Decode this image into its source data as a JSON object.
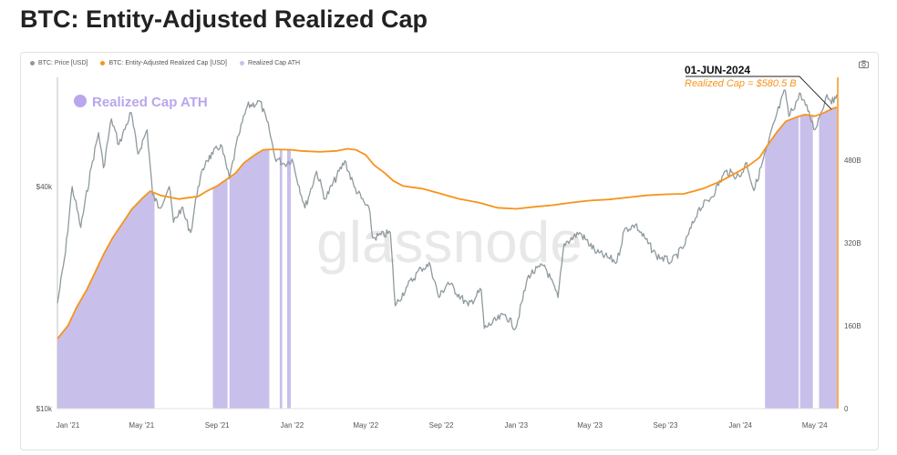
{
  "title": "BTC: Entity-Adjusted Realized Cap",
  "legend": [
    {
      "label": "BTC: Price [USD]",
      "color": "#8e9a9e"
    },
    {
      "label": "BTC: Entity-Adjusted Realized Cap [USD]",
      "color": "#f7931a"
    },
    {
      "label": "Realized Cap ATH",
      "color": "#c9bfeb"
    }
  ],
  "camera_icon": "camera-icon",
  "watermark": "glassnode",
  "chart_data": {
    "type": "line",
    "x_ticks": [
      "Jan '21",
      "May '21",
      "Sep '21",
      "Jan '22",
      "May '22",
      "Sep '22",
      "Jan '23",
      "May '23",
      "Sep '23",
      "Jan '24",
      "May '24"
    ],
    "y_left_scale": "log",
    "y_left_ticks": [
      "$10k",
      "$40k"
    ],
    "y_right_ticks": [
      "0",
      "160B",
      "320B",
      "480B"
    ],
    "y_right_range": [
      0,
      640
    ],
    "annotation": {
      "date": "01-JUN-2024",
      "text": "Realized Cap = $580.5 B",
      "value": 580.5
    },
    "series": [
      {
        "name": "BTC: Price [USD]",
        "color": "#8e9a9e",
        "axis": "left",
        "points": [
          [
            "2020-12-15",
            19300
          ],
          [
            "2020-12-28",
            26500
          ],
          [
            "2021-01-08",
            40000
          ],
          [
            "2021-01-22",
            31000
          ],
          [
            "2021-02-08",
            45000
          ],
          [
            "2021-02-20",
            56000
          ],
          [
            "2021-02-28",
            45000
          ],
          [
            "2021-03-13",
            61000
          ],
          [
            "2021-03-25",
            52000
          ],
          [
            "2021-04-14",
            63500
          ],
          [
            "2021-04-25",
            49000
          ],
          [
            "2021-05-10",
            57000
          ],
          [
            "2021-05-19",
            38000
          ],
          [
            "2021-05-30",
            35000
          ],
          [
            "2021-06-15",
            40000
          ],
          [
            "2021-06-22",
            32000
          ],
          [
            "2021-07-05",
            35000
          ],
          [
            "2021-07-20",
            30000
          ],
          [
            "2021-08-01",
            40000
          ],
          [
            "2021-08-14",
            47000
          ],
          [
            "2021-08-25",
            49000
          ],
          [
            "2021-09-07",
            52000
          ],
          [
            "2021-09-21",
            42000
          ],
          [
            "2021-10-06",
            55000
          ],
          [
            "2021-10-20",
            66000
          ],
          [
            "2021-11-10",
            68000
          ],
          [
            "2021-11-25",
            57000
          ],
          [
            "2021-12-04",
            48000
          ],
          [
            "2021-12-20",
            46000
          ],
          [
            "2022-01-01",
            47500
          ],
          [
            "2022-01-22",
            35000
          ],
          [
            "2022-02-10",
            44000
          ],
          [
            "2022-02-24",
            37000
          ],
          [
            "2022-03-28",
            47000
          ],
          [
            "2022-04-12",
            40000
          ],
          [
            "2022-05-08",
            34000
          ],
          [
            "2022-05-12",
            29000
          ],
          [
            "2022-06-10",
            30000
          ],
          [
            "2022-06-18",
            19000
          ],
          [
            "2022-07-08",
            21500
          ],
          [
            "2022-07-30",
            24000
          ],
          [
            "2022-08-14",
            24500
          ],
          [
            "2022-08-28",
            20000
          ],
          [
            "2022-09-12",
            22000
          ],
          [
            "2022-10-15",
            19000
          ],
          [
            "2022-11-05",
            21000
          ],
          [
            "2022-11-10",
            16500
          ],
          [
            "2022-12-14",
            18000
          ],
          [
            "2022-12-31",
            16500
          ],
          [
            "2023-01-21",
            23000
          ],
          [
            "2023-02-16",
            24500
          ],
          [
            "2023-03-10",
            20000
          ],
          [
            "2023-03-20",
            28000
          ],
          [
            "2023-04-14",
            30000
          ],
          [
            "2023-05-12",
            26500
          ],
          [
            "2023-06-14",
            25000
          ],
          [
            "2023-06-26",
            30500
          ],
          [
            "2023-07-14",
            31500
          ],
          [
            "2023-08-17",
            26000
          ],
          [
            "2023-09-11",
            25000
          ],
          [
            "2023-10-01",
            27500
          ],
          [
            "2023-10-24",
            34500
          ],
          [
            "2023-11-15",
            37500
          ],
          [
            "2023-12-08",
            44000
          ],
          [
            "2023-12-31",
            42500
          ],
          [
            "2024-01-11",
            46500
          ],
          [
            "2024-01-23",
            39000
          ],
          [
            "2024-02-15",
            52000
          ],
          [
            "2024-02-28",
            62000
          ],
          [
            "2024-03-14",
            73000
          ],
          [
            "2024-03-20",
            62000
          ],
          [
            "2024-04-08",
            71500
          ],
          [
            "2024-04-20",
            64000
          ],
          [
            "2024-05-01",
            57000
          ],
          [
            "2024-05-21",
            71000
          ],
          [
            "2024-06-01",
            67500
          ],
          [
            "2024-06-06",
            71000
          ]
        ]
      },
      {
        "name": "BTC: Entity-Adjusted Realized Cap [USD]",
        "color": "#f7931a",
        "axis": "right",
        "points": [
          [
            "2020-12-15",
            135
          ],
          [
            "2021-01-01",
            160
          ],
          [
            "2021-01-15",
            195
          ],
          [
            "2021-02-01",
            230
          ],
          [
            "2021-02-15",
            265
          ],
          [
            "2021-03-01",
            300
          ],
          [
            "2021-03-15",
            330
          ],
          [
            "2021-04-01",
            360
          ],
          [
            "2021-04-15",
            385
          ],
          [
            "2021-05-01",
            405
          ],
          [
            "2021-05-15",
            420
          ],
          [
            "2021-06-01",
            412
          ],
          [
            "2021-07-01",
            405
          ],
          [
            "2021-08-01",
            410
          ],
          [
            "2021-08-15",
            420
          ],
          [
            "2021-09-01",
            430
          ],
          [
            "2021-10-01",
            455
          ],
          [
            "2021-10-15",
            475
          ],
          [
            "2021-11-01",
            490
          ],
          [
            "2021-11-15",
            500
          ],
          [
            "2021-12-01",
            501
          ],
          [
            "2021-12-31",
            500
          ],
          [
            "2022-01-15",
            498
          ],
          [
            "2022-02-15",
            496
          ],
          [
            "2022-03-15",
            498
          ],
          [
            "2022-04-01",
            502
          ],
          [
            "2022-04-15",
            500
          ],
          [
            "2022-05-01",
            490
          ],
          [
            "2022-05-15",
            470
          ],
          [
            "2022-06-01",
            455
          ],
          [
            "2022-06-15",
            440
          ],
          [
            "2022-07-01",
            430
          ],
          [
            "2022-08-01",
            425
          ],
          [
            "2022-09-01",
            415
          ],
          [
            "2022-10-01",
            405
          ],
          [
            "2022-11-01",
            398
          ],
          [
            "2022-12-01",
            388
          ],
          [
            "2023-01-01",
            386
          ],
          [
            "2023-02-01",
            390
          ],
          [
            "2023-03-01",
            393
          ],
          [
            "2023-04-01",
            398
          ],
          [
            "2023-05-01",
            402
          ],
          [
            "2023-06-01",
            404
          ],
          [
            "2023-07-01",
            408
          ],
          [
            "2023-08-01",
            412
          ],
          [
            "2023-09-01",
            414
          ],
          [
            "2023-10-01",
            415
          ],
          [
            "2023-11-01",
            425
          ],
          [
            "2023-12-01",
            440
          ],
          [
            "2024-01-01",
            460
          ],
          [
            "2024-01-15",
            470
          ],
          [
            "2024-02-01",
            485
          ],
          [
            "2024-02-15",
            510
          ],
          [
            "2024-03-01",
            535
          ],
          [
            "2024-03-15",
            555
          ],
          [
            "2024-04-01",
            563
          ],
          [
            "2024-04-15",
            568
          ],
          [
            "2024-05-01",
            565
          ],
          [
            "2024-05-15",
            571
          ],
          [
            "2024-06-01",
            580.5
          ],
          [
            "2024-06-06",
            582
          ]
        ]
      },
      {
        "name": "Realized Cap ATH",
        "color": "#c9bfeb",
        "axis": "right",
        "ranges": [
          [
            "2020-12-15",
            "2021-05-22"
          ],
          [
            "2021-08-25",
            "2021-09-18"
          ],
          [
            "2021-09-21",
            "2021-11-25"
          ],
          [
            "2021-12-12",
            "2021-12-16"
          ],
          [
            "2021-12-24",
            "2021-12-30"
          ],
          [
            "2024-02-10",
            "2024-04-05"
          ],
          [
            "2024-04-07",
            "2024-04-28"
          ],
          [
            "2024-05-08",
            "2024-06-06"
          ]
        ]
      }
    ]
  }
}
